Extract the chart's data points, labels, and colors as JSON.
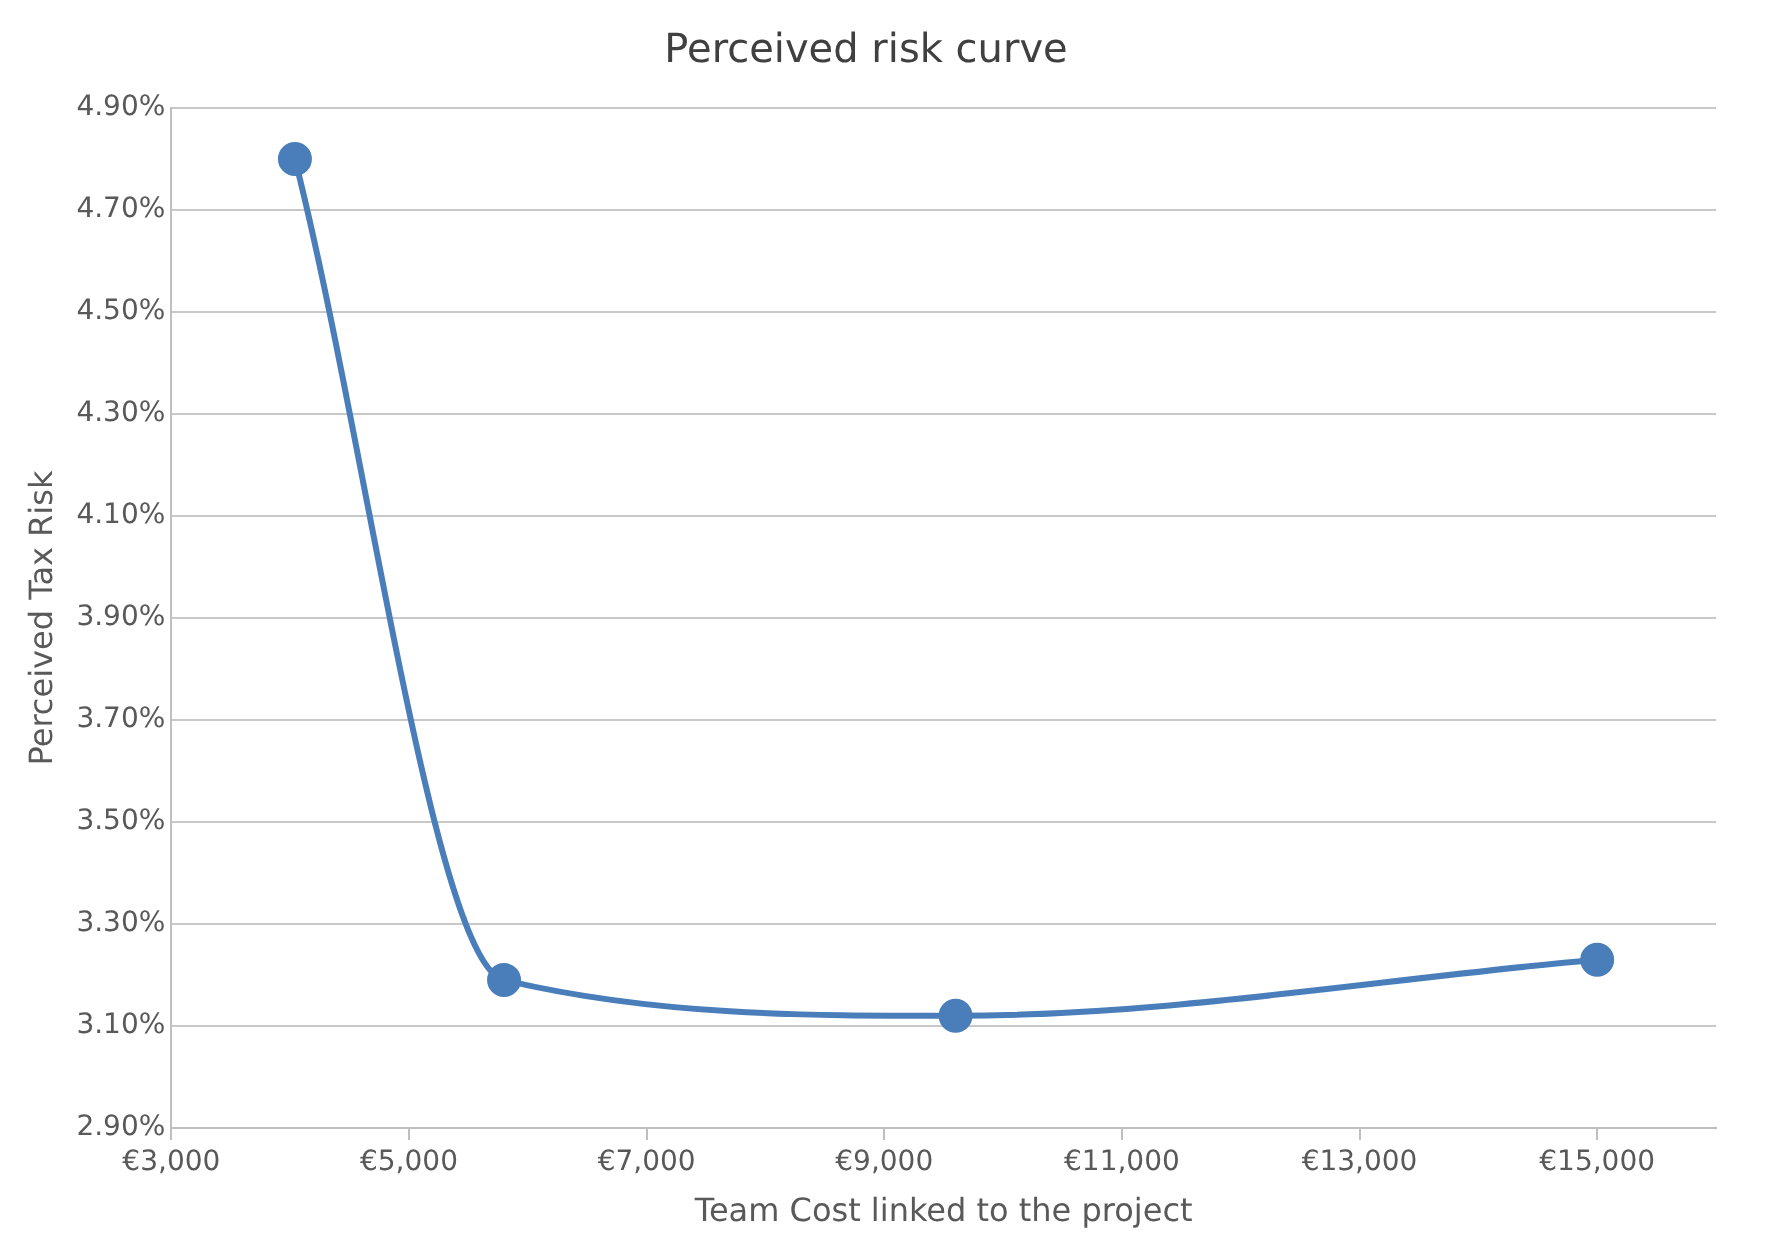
{
  "chart_data": {
    "type": "line",
    "title": "Perceived risk curve",
    "xlabel": "Team Cost linked to the project",
    "ylabel": "Perceived Tax Risk",
    "x": [
      4040,
      5800,
      9600,
      15000
    ],
    "series": [
      {
        "color": "#4a7ebb",
        "values": [
          4.8,
          3.19,
          3.12,
          3.23
        ]
      }
    ],
    "xlim": [
      3000,
      16000
    ],
    "xticks": [
      {
        "value": 3000,
        "label": "€3,000"
      },
      {
        "value": 5000,
        "label": "€5,000"
      },
      {
        "value": 7000,
        "label": "€7,000"
      },
      {
        "value": 9000,
        "label": "€9,000"
      },
      {
        "value": 11000,
        "label": "€11,000"
      },
      {
        "value": 13000,
        "label": "€13,000"
      },
      {
        "value": 15000,
        "label": "€15,000"
      }
    ],
    "ylim": [
      2.9,
      4.9
    ],
    "yticks": [
      {
        "value": 2.9,
        "label": "2.90%"
      },
      {
        "value": 3.1,
        "label": "3.10%"
      },
      {
        "value": 3.3,
        "label": "3.30%"
      },
      {
        "value": 3.5,
        "label": "3.50%"
      },
      {
        "value": 3.7,
        "label": "3.70%"
      },
      {
        "value": 3.9,
        "label": "3.90%"
      },
      {
        "value": 4.1,
        "label": "4.10%"
      },
      {
        "value": 4.3,
        "label": "4.30%"
      },
      {
        "value": 4.5,
        "label": "4.50%"
      },
      {
        "value": 4.7,
        "label": "4.70%"
      },
      {
        "value": 4.9,
        "label": "4.90%"
      }
    ],
    "grid": "y",
    "marker": "circle",
    "line_style": "solid",
    "legend": false
  }
}
